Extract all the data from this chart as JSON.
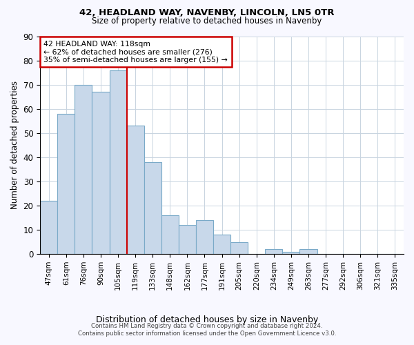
{
  "title1": "42, HEADLAND WAY, NAVENBY, LINCOLN, LN5 0TR",
  "title2": "Size of property relative to detached houses in Navenby",
  "xlabel": "Distribution of detached houses by size in Navenby",
  "ylabel": "Number of detached properties",
  "categories": [
    "47sqm",
    "61sqm",
    "76sqm",
    "90sqm",
    "105sqm",
    "119sqm",
    "133sqm",
    "148sqm",
    "162sqm",
    "177sqm",
    "191sqm",
    "205sqm",
    "220sqm",
    "234sqm",
    "249sqm",
    "263sqm",
    "277sqm",
    "292sqm",
    "306sqm",
    "321sqm",
    "335sqm"
  ],
  "values": [
    22,
    58,
    70,
    67,
    76,
    53,
    38,
    16,
    12,
    14,
    8,
    5,
    0,
    2,
    1,
    2,
    0,
    0,
    0,
    0,
    0
  ],
  "bar_color": "#c8d8ea",
  "bar_edge_color": "#7aaac8",
  "vline_x_index": 4.5,
  "vline_color": "#cc0000",
  "annotation_line1": "42 HEADLAND WAY: 118sqm",
  "annotation_line2": "← 62% of detached houses are smaller (276)",
  "annotation_line3": "35% of semi-detached houses are larger (155) →",
  "annotation_box_color": "white",
  "annotation_box_edge_color": "#cc0000",
  "ylim": [
    0,
    90
  ],
  "yticks": [
    0,
    10,
    20,
    30,
    40,
    50,
    60,
    70,
    80,
    90
  ],
  "grid_color": "#c8d4e0",
  "footer1": "Contains HM Land Registry data © Crown copyright and database right 2024.",
  "footer2": "Contains public sector information licensed under the Open Government Licence v3.0.",
  "background_color": "#ffffff",
  "fig_background_color": "#f8f8ff"
}
